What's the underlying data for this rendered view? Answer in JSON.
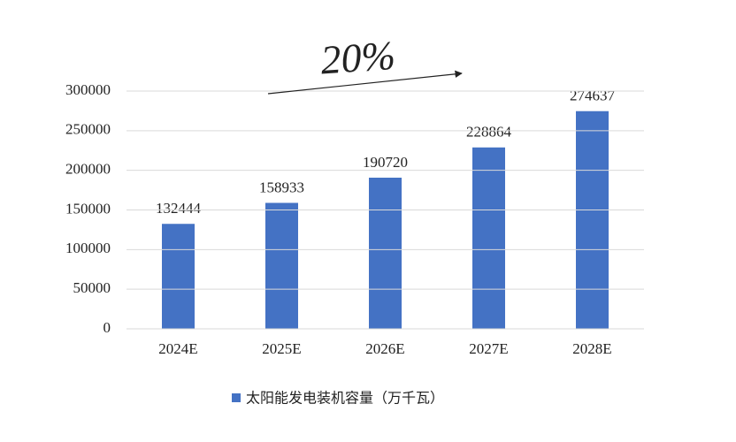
{
  "chart_data": {
    "type": "bar",
    "categories": [
      "2024E",
      "2025E",
      "2026E",
      "2027E",
      "2028E"
    ],
    "series": [
      {
        "name": "太阳能发电装机容量（万千瓦）",
        "color": "#4472c4",
        "values": [
          132444,
          158933,
          190720,
          228864,
          274637
        ]
      }
    ],
    "ylim": [
      0,
      300000
    ],
    "yticks": [
      0,
      50000,
      100000,
      150000,
      200000,
      250000,
      300000
    ],
    "grid": true,
    "legend": "bottom",
    "annotation": "20%"
  }
}
